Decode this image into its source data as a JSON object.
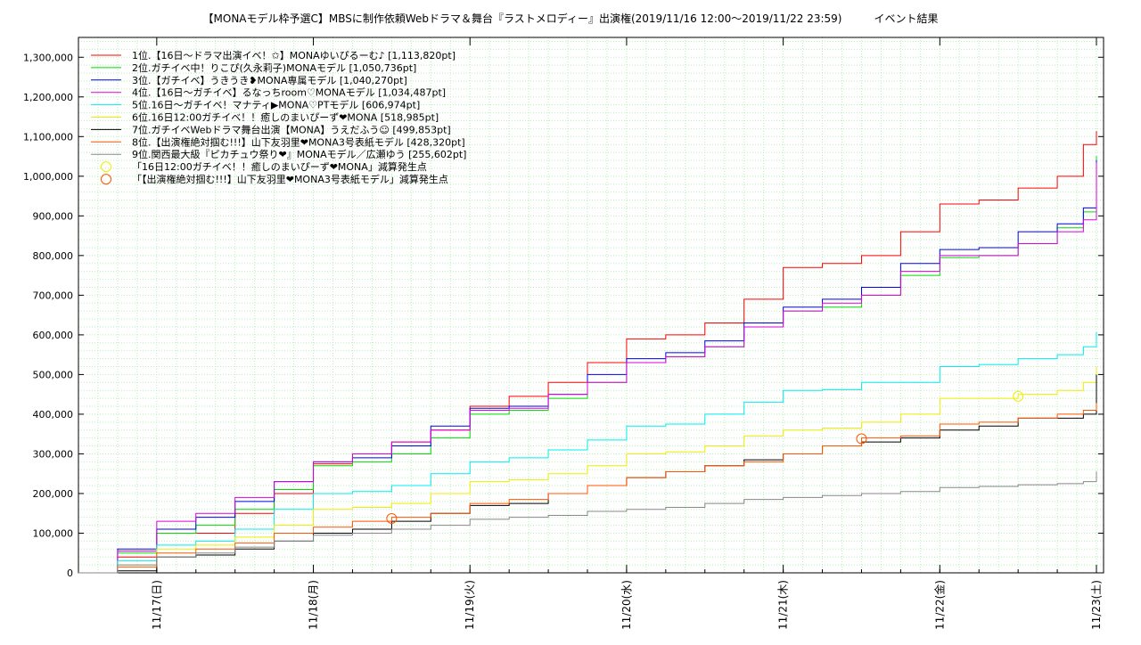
{
  "chart_data": {
    "type": "line",
    "title": "【MONAモデル枠予選C】MBSに制作依頼Webドラマ＆舞台『ラストメロディー』出演権(2019/11/16 12:00〜2019/11/22 23:59)　　　イベント結果",
    "xlabel": "",
    "ylabel": "",
    "x_range": [
      "2019-11-16T12:00",
      "2019-11-23T00:00"
    ],
    "ylim": [
      0,
      1350000
    ],
    "y_ticks": [
      0,
      100000,
      200000,
      300000,
      400000,
      500000,
      600000,
      700000,
      800000,
      900000,
      1000000,
      1100000,
      1200000,
      1300000
    ],
    "y_tick_labels": [
      "0",
      "100,000",
      "200,000",
      "300,000",
      "400,000",
      "500,000",
      "600,000",
      "700,000",
      "800,000",
      "900,000",
      "1,000,000",
      "1,100,000",
      "1,200,000",
      "1,300,000"
    ],
    "x_ticks": [
      "2019-11-17T00:00",
      "2019-11-18T00:00",
      "2019-11-19T00:00",
      "2019-11-20T00:00",
      "2019-11-21T00:00",
      "2019-11-22T00:00",
      "2019-11-23T00:00"
    ],
    "x_tick_labels": [
      "11/17(日)",
      "11/18(月)",
      "11/19(火)",
      "11/20(水)",
      "11/21(木)",
      "11/22(金)",
      "11/23(土)"
    ],
    "grid": true,
    "legend_position": "top-left",
    "series": [
      {
        "name": "1位.【16日〜ドラマ出演イベ！✩】MONAゆいぴるーむ♪ [1,113,820pt]",
        "color": "#ff0000",
        "x": [
          "2019-11-16T12:00",
          "2019-11-16T18:00",
          "2019-11-17T00:00",
          "2019-11-17T06:00",
          "2019-11-17T12:00",
          "2019-11-17T18:00",
          "2019-11-18T00:00",
          "2019-11-18T06:00",
          "2019-11-18T12:00",
          "2019-11-18T18:00",
          "2019-11-19T00:00",
          "2019-11-19T06:00",
          "2019-11-19T12:00",
          "2019-11-19T18:00",
          "2019-11-20T00:00",
          "2019-11-20T06:00",
          "2019-11-20T12:00",
          "2019-11-20T18:00",
          "2019-11-21T00:00",
          "2019-11-21T06:00",
          "2019-11-21T12:00",
          "2019-11-21T18:00",
          "2019-11-22T00:00",
          "2019-11-22T06:00",
          "2019-11-22T12:00",
          "2019-11-22T18:00",
          "2019-11-22T22:00",
          "2019-11-23T00:00"
        ],
        "y": [
          0,
          40000,
          100000,
          100000,
          150000,
          200000,
          275000,
          300000,
          330000,
          360000,
          420000,
          445000,
          480000,
          530000,
          590000,
          600000,
          630000,
          690000,
          770000,
          780000,
          800000,
          860000,
          930000,
          940000,
          970000,
          1000000,
          1080000,
          1113820
        ]
      },
      {
        "name": "2位.ガチイベ中！りこぴ(久永莉子)MONAモデル [1,050,736pt]",
        "color": "#00dd00",
        "x": [
          "2019-11-16T12:00",
          "2019-11-16T18:00",
          "2019-11-17T00:00",
          "2019-11-17T06:00",
          "2019-11-17T12:00",
          "2019-11-17T18:00",
          "2019-11-18T00:00",
          "2019-11-18T06:00",
          "2019-11-18T12:00",
          "2019-11-18T18:00",
          "2019-11-19T00:00",
          "2019-11-19T06:00",
          "2019-11-19T12:00",
          "2019-11-19T18:00",
          "2019-11-20T00:00",
          "2019-11-20T06:00",
          "2019-11-20T12:00",
          "2019-11-20T18:00",
          "2019-11-21T00:00",
          "2019-11-21T06:00",
          "2019-11-21T12:00",
          "2019-11-21T18:00",
          "2019-11-22T00:00",
          "2019-11-22T06:00",
          "2019-11-22T12:00",
          "2019-11-22T18:00",
          "2019-11-22T22:00",
          "2019-11-23T00:00"
        ],
        "y": [
          0,
          50000,
          100000,
          120000,
          160000,
          210000,
          270000,
          280000,
          300000,
          340000,
          400000,
          410000,
          440000,
          480000,
          530000,
          545000,
          570000,
          620000,
          660000,
          670000,
          700000,
          750000,
          795000,
          800000,
          830000,
          870000,
          910000,
          1050736
        ]
      },
      {
        "name": "3位.【ガチイベ】うきうき❥MONA専属モデル [1,040,270pt]",
        "color": "#0000ee",
        "x": [
          "2019-11-16T12:00",
          "2019-11-16T18:00",
          "2019-11-17T00:00",
          "2019-11-17T06:00",
          "2019-11-17T12:00",
          "2019-11-17T18:00",
          "2019-11-18T00:00",
          "2019-11-18T06:00",
          "2019-11-18T12:00",
          "2019-11-18T18:00",
          "2019-11-19T00:00",
          "2019-11-19T06:00",
          "2019-11-19T12:00",
          "2019-11-19T18:00",
          "2019-11-20T00:00",
          "2019-11-20T06:00",
          "2019-11-20T12:00",
          "2019-11-20T18:00",
          "2019-11-21T00:00",
          "2019-11-21T06:00",
          "2019-11-21T12:00",
          "2019-11-21T18:00",
          "2019-11-22T00:00",
          "2019-11-22T06:00",
          "2019-11-22T12:00",
          "2019-11-22T18:00",
          "2019-11-22T22:00",
          "2019-11-23T00:00"
        ],
        "y": [
          0,
          60000,
          110000,
          140000,
          180000,
          230000,
          280000,
          290000,
          320000,
          370000,
          415000,
          420000,
          450000,
          500000,
          540000,
          555000,
          585000,
          630000,
          670000,
          690000,
          720000,
          780000,
          815000,
          820000,
          860000,
          880000,
          920000,
          1040270
        ]
      },
      {
        "name": "4位.【16日〜ガチイベ】るなっちroom♡MONAモデル [1,034,487pt]",
        "color": "#dd00dd",
        "x": [
          "2019-11-16T12:00",
          "2019-11-16T18:00",
          "2019-11-17T00:00",
          "2019-11-17T06:00",
          "2019-11-17T12:00",
          "2019-11-17T18:00",
          "2019-11-18T00:00",
          "2019-11-18T06:00",
          "2019-11-18T12:00",
          "2019-11-18T18:00",
          "2019-11-19T00:00",
          "2019-11-19T06:00",
          "2019-11-19T12:00",
          "2019-11-19T18:00",
          "2019-11-20T00:00",
          "2019-11-20T06:00",
          "2019-11-20T12:00",
          "2019-11-20T18:00",
          "2019-11-21T00:00",
          "2019-11-21T06:00",
          "2019-11-21T12:00",
          "2019-11-21T18:00",
          "2019-11-22T00:00",
          "2019-11-22T06:00",
          "2019-11-22T12:00",
          "2019-11-22T18:00",
          "2019-11-22T22:00",
          "2019-11-23T00:00"
        ],
        "y": [
          0,
          55000,
          130000,
          150000,
          190000,
          230000,
          280000,
          300000,
          330000,
          360000,
          410000,
          415000,
          450000,
          480000,
          530000,
          545000,
          570000,
          620000,
          660000,
          680000,
          700000,
          760000,
          800000,
          800000,
          830000,
          860000,
          890000,
          1034487
        ]
      },
      {
        "name": "5位.16日〜ガチイベ！マナティ▶MONA♡PTモデル [606,974pt]",
        "color": "#00eeee",
        "x": [
          "2019-11-16T12:00",
          "2019-11-16T18:00",
          "2019-11-17T00:00",
          "2019-11-17T06:00",
          "2019-11-17T12:00",
          "2019-11-17T18:00",
          "2019-11-18T00:00",
          "2019-11-18T06:00",
          "2019-11-18T12:00",
          "2019-11-18T18:00",
          "2019-11-19T00:00",
          "2019-11-19T06:00",
          "2019-11-19T12:00",
          "2019-11-19T18:00",
          "2019-11-20T00:00",
          "2019-11-20T06:00",
          "2019-11-20T12:00",
          "2019-11-20T18:00",
          "2019-11-21T00:00",
          "2019-11-21T06:00",
          "2019-11-21T12:00",
          "2019-11-21T18:00",
          "2019-11-22T00:00",
          "2019-11-22T06:00",
          "2019-11-22T12:00",
          "2019-11-22T18:00",
          "2019-11-22T22:00",
          "2019-11-23T00:00"
        ],
        "y": [
          0,
          30000,
          70000,
          80000,
          110000,
          160000,
          200000,
          205000,
          220000,
          250000,
          280000,
          290000,
          310000,
          335000,
          370000,
          375000,
          400000,
          430000,
          460000,
          462000,
          480000,
          480000,
          520000,
          525000,
          540000,
          550000,
          570000,
          606974
        ]
      },
      {
        "name": "6位.16日12:00ガチイベ！！癒しのまいぴーず❤MONA [518,985pt]",
        "color": "#eeee00",
        "x": [
          "2019-11-16T12:00",
          "2019-11-16T18:00",
          "2019-11-17T00:00",
          "2019-11-17T06:00",
          "2019-11-17T12:00",
          "2019-11-17T18:00",
          "2019-11-18T00:00",
          "2019-11-18T06:00",
          "2019-11-18T12:00",
          "2019-11-18T18:00",
          "2019-11-19T00:00",
          "2019-11-19T06:00",
          "2019-11-19T12:00",
          "2019-11-19T18:00",
          "2019-11-20T00:00",
          "2019-11-20T06:00",
          "2019-11-20T12:00",
          "2019-11-20T18:00",
          "2019-11-21T00:00",
          "2019-11-21T06:00",
          "2019-11-21T12:00",
          "2019-11-21T18:00",
          "2019-11-22T00:00",
          "2019-11-22T06:00",
          "2019-11-22T12:00",
          "2019-11-22T18:00",
          "2019-11-22T22:00",
          "2019-11-23T00:00"
        ],
        "y": [
          0,
          20000,
          60000,
          70000,
          90000,
          120000,
          160000,
          165000,
          175000,
          200000,
          230000,
          235000,
          250000,
          270000,
          300000,
          305000,
          320000,
          345000,
          360000,
          365000,
          380000,
          400000,
          440000,
          440000,
          450000,
          460000,
          480000,
          518985
        ]
      },
      {
        "name": "7位.ガチイベWebドラマ舞台出演【MONA】うえだふう☺ [499,853pt]",
        "color": "#000000",
        "x": [
          "2019-11-16T12:00",
          "2019-11-16T18:00",
          "2019-11-17T00:00",
          "2019-11-17T06:00",
          "2019-11-17T12:00",
          "2019-11-17T18:00",
          "2019-11-18T00:00",
          "2019-11-18T06:00",
          "2019-11-18T12:00",
          "2019-11-18T18:00",
          "2019-11-19T00:00",
          "2019-11-19T06:00",
          "2019-11-19T12:00",
          "2019-11-19T18:00",
          "2019-11-20T00:00",
          "2019-11-20T06:00",
          "2019-11-20T12:00",
          "2019-11-20T18:00",
          "2019-11-21T00:00",
          "2019-11-21T06:00",
          "2019-11-21T12:00",
          "2019-11-21T18:00",
          "2019-11-22T00:00",
          "2019-11-22T06:00",
          "2019-11-22T12:00",
          "2019-11-22T18:00",
          "2019-11-22T22:00",
          "2019-11-23T00:00"
        ],
        "y": [
          0,
          5000,
          40000,
          45000,
          60000,
          80000,
          100000,
          110000,
          130000,
          150000,
          170000,
          175000,
          200000,
          220000,
          240000,
          255000,
          270000,
          285000,
          300000,
          320000,
          330000,
          340000,
          360000,
          370000,
          390000,
          390000,
          400000,
          499853
        ]
      },
      {
        "name": "8位.【出演権絶対掴む!!!】山下友羽里❤MONA3号表紙モデル [428,320pt]",
        "color": "#ff5500",
        "x": [
          "2019-11-16T12:00",
          "2019-11-16T18:00",
          "2019-11-17T00:00",
          "2019-11-17T06:00",
          "2019-11-17T12:00",
          "2019-11-17T18:00",
          "2019-11-18T00:00",
          "2019-11-18T06:00",
          "2019-11-18T12:00",
          "2019-11-18T18:00",
          "2019-11-19T00:00",
          "2019-11-19T06:00",
          "2019-11-19T12:00",
          "2019-11-19T18:00",
          "2019-11-20T00:00",
          "2019-11-20T06:00",
          "2019-11-20T12:00",
          "2019-11-20T18:00",
          "2019-11-21T00:00",
          "2019-11-21T06:00",
          "2019-11-21T12:00",
          "2019-11-21T18:00",
          "2019-11-22T00:00",
          "2019-11-22T06:00",
          "2019-11-22T12:00",
          "2019-11-22T18:00",
          "2019-11-22T22:00",
          "2019-11-23T00:00"
        ],
        "y": [
          0,
          15000,
          50000,
          60000,
          75000,
          100000,
          115000,
          130000,
          140000,
          150000,
          175000,
          185000,
          200000,
          220000,
          240000,
          255000,
          270000,
          280000,
          300000,
          320000,
          340000,
          345000,
          375000,
          380000,
          390000,
          400000,
          410000,
          428320
        ]
      },
      {
        "name": "9位.関西最大級『ピカチュウ祭り❤』MONAモデル／広瀬ゆう [255,602pt]",
        "color": "#888888",
        "x": [
          "2019-11-16T12:00",
          "2019-11-16T18:00",
          "2019-11-17T00:00",
          "2019-11-17T06:00",
          "2019-11-17T12:00",
          "2019-11-17T18:00",
          "2019-11-18T00:00",
          "2019-11-18T06:00",
          "2019-11-18T12:00",
          "2019-11-18T18:00",
          "2019-11-19T00:00",
          "2019-11-19T06:00",
          "2019-11-19T12:00",
          "2019-11-19T18:00",
          "2019-11-20T00:00",
          "2019-11-20T06:00",
          "2019-11-20T12:00",
          "2019-11-20T18:00",
          "2019-11-21T00:00",
          "2019-11-21T06:00",
          "2019-11-21T12:00",
          "2019-11-21T18:00",
          "2019-11-22T00:00",
          "2019-11-22T06:00",
          "2019-11-22T12:00",
          "2019-11-22T18:00",
          "2019-11-22T22:00",
          "2019-11-23T00:00"
        ],
        "y": [
          0,
          20000,
          40000,
          50000,
          65000,
          80000,
          95000,
          100000,
          110000,
          120000,
          135000,
          140000,
          145000,
          155000,
          160000,
          165000,
          175000,
          185000,
          190000,
          195000,
          200000,
          205000,
          215000,
          218000,
          222000,
          225000,
          230000,
          255602
        ]
      }
    ],
    "markers": [
      {
        "name": "「16日12:00ガチイベ！！癒しのまいぴーず❤MONA」減算発生点",
        "color": "#eeee00",
        "x": "2019-11-22T12:00",
        "y": 445000
      },
      {
        "name": "「【出演権絶対掴む!!!】山下友羽里❤MONA3号表紙モデル」減算発生点",
        "color": "#ff5500",
        "x": "2019-11-21T12:00",
        "y": 338000
      },
      {
        "name": "「【出演権絶対掴む!!!】山下友羽里❤MONA3号表紙モデル」減算発生点",
        "color": "#ff5500",
        "x": "2019-11-18T12:00",
        "y": 137000
      }
    ]
  }
}
